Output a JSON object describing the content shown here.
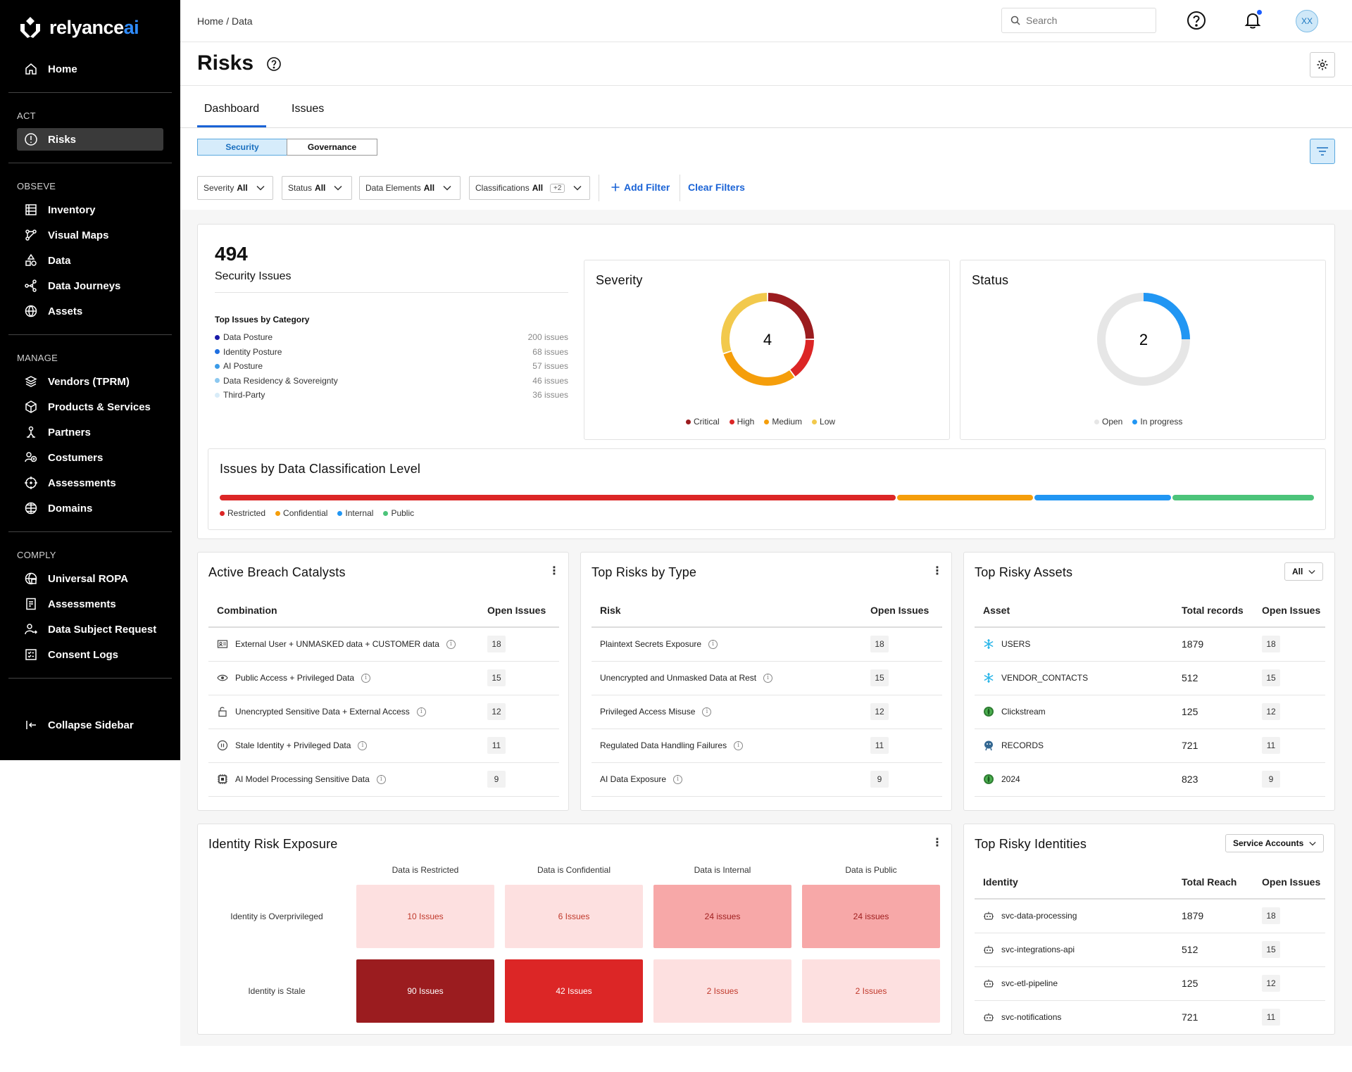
{
  "brand": {
    "name_main": "relyance",
    "name_accent": "ai"
  },
  "sidebar": {
    "home": "Home",
    "sections": [
      {
        "title": "ACT",
        "items": [
          {
            "label": "Risks",
            "icon": "alert-circle-icon",
            "active": true
          }
        ]
      },
      {
        "title": "OBSEVE",
        "items": [
          {
            "label": "Inventory",
            "icon": "inventory-icon"
          },
          {
            "label": "Visual Maps",
            "icon": "visual-maps-icon"
          },
          {
            "label": "Data",
            "icon": "data-shapes-icon"
          },
          {
            "label": "Data Journeys",
            "icon": "share-nodes-icon"
          },
          {
            "label": "Assets",
            "icon": "assets-globe-icon"
          }
        ]
      },
      {
        "title": "MANAGE",
        "items": [
          {
            "label": "Vendors (TPRM)",
            "icon": "layers-icon"
          },
          {
            "label": "Products & Services",
            "icon": "box-icon"
          },
          {
            "label": "Partners",
            "icon": "partners-icon"
          },
          {
            "label": "Costumers",
            "icon": "customers-icon"
          },
          {
            "label": "Assessments",
            "icon": "target-icon"
          },
          {
            "label": "Domains",
            "icon": "globe-icon"
          }
        ]
      },
      {
        "title": "COMPLY",
        "items": [
          {
            "label": "Universal ROPA",
            "icon": "ropa-icon"
          },
          {
            "label": "Assessments",
            "icon": "checklist-icon"
          },
          {
            "label": "Data Subject Request",
            "icon": "user-request-icon"
          },
          {
            "label": "Consent Logs",
            "icon": "consent-icon"
          }
        ]
      }
    ],
    "collapse": "Collapse Sidebar"
  },
  "header": {
    "breadcrumb": "Home / Data",
    "search_placeholder": "Search",
    "avatar": "XX"
  },
  "page": {
    "title": "Risks"
  },
  "tabs": [
    {
      "label": "Dashboard",
      "active": true
    },
    {
      "label": "Issues",
      "active": false
    }
  ],
  "segments": [
    {
      "label": "Security",
      "active": true
    },
    {
      "label": "Governance",
      "active": false
    }
  ],
  "filters": [
    {
      "label": "Severity",
      "value": "All"
    },
    {
      "label": "Status",
      "value": "All"
    },
    {
      "label": "Data Elements",
      "value": "All"
    },
    {
      "label": "Classifications",
      "value": "All",
      "extra": "+2"
    }
  ],
  "actions": {
    "add_filter": "Add Filter",
    "clear_filters": "Clear Filters"
  },
  "summary": {
    "total": "494",
    "label": "Security Issues",
    "categories_title": "Top Issues by Category",
    "categories": [
      {
        "name": "Data Posture",
        "count": "200 issues",
        "color": "#1a1aa8"
      },
      {
        "name": "Identity Posture",
        "count": "68 issues",
        "color": "#1f6fe0"
      },
      {
        "name": "AI Posture",
        "count": "57 issues",
        "color": "#3b9be8"
      },
      {
        "name": "Data Residency & Sovereignty",
        "count": "46 issues",
        "color": "#8cc8f0"
      },
      {
        "name": "Third-Party",
        "count": "36 issues",
        "color": "#d8ecf8"
      }
    ]
  },
  "severity": {
    "title": "Severity",
    "center": "4",
    "segments": [
      {
        "name": "Critical",
        "value": 1,
        "color": "#9b1c1f"
      },
      {
        "name": "High",
        "value": 0.6,
        "color": "#dc2626"
      },
      {
        "name": "Medium",
        "value": 1.2,
        "color": "#f59e0b"
      },
      {
        "name": "Low",
        "value": 1.2,
        "color": "#f2c94c"
      }
    ]
  },
  "status": {
    "title": "Status",
    "center": "2",
    "segments": [
      {
        "name": "Open",
        "value": 3,
        "color": "#e6e6e6"
      },
      {
        "name": "In progress",
        "value": 1,
        "color": "#2196f3"
      }
    ]
  },
  "classification": {
    "title": "Issues by Data Classification Level",
    "levels": [
      {
        "name": "Restricted",
        "value": 62,
        "color": "#dc2626"
      },
      {
        "name": "Confidential",
        "value": 12.5,
        "color": "#f59e0b"
      },
      {
        "name": "Internal",
        "value": 12.5,
        "color": "#2196f3"
      },
      {
        "name": "Public",
        "value": 13,
        "color": "#4cc47a"
      }
    ]
  },
  "breach": {
    "title": "Active Breach Catalysts",
    "headers": [
      "Combination",
      "Open Issues"
    ],
    "rows": [
      {
        "name": "External User + UNMASKED data + CUSTOMER data",
        "count": "18",
        "icon": "id-card-icon"
      },
      {
        "name": "Public Access + Privileged Data",
        "count": "15",
        "icon": "eye-icon"
      },
      {
        "name": "Unencrypted Sensitive Data + External Access",
        "count": "12",
        "icon": "unlock-icon"
      },
      {
        "name": "Stale Identity + Privileged Data",
        "count": "11",
        "icon": "pause-circle-icon"
      },
      {
        "name": "AI Model Processing Sensitive Data",
        "count": "9",
        "icon": "ai-chip-icon"
      }
    ]
  },
  "risk_types": {
    "title": "Top Risks by Type",
    "headers": [
      "Risk",
      "Open Issues"
    ],
    "rows": [
      {
        "name": "Plaintext Secrets Exposure",
        "count": "18"
      },
      {
        "name": "Unencrypted and Unmasked Data at Rest",
        "count": "15"
      },
      {
        "name": "Privileged Access Misuse",
        "count": "12"
      },
      {
        "name": "Regulated Data Handling Failures",
        "count": "11"
      },
      {
        "name": "AI Data Exposure",
        "count": "9"
      }
    ]
  },
  "risky_assets": {
    "title": "Top Risky Assets",
    "dropdown": "All",
    "headers": [
      "Asset",
      "Total records",
      "Open Issues"
    ],
    "rows": [
      {
        "name": "USERS",
        "records": "1879",
        "count": "18",
        "icon": "snowflake-icon"
      },
      {
        "name": "VENDOR_CONTACTS",
        "records": "512",
        "count": "15",
        "icon": "snowflake-icon"
      },
      {
        "name": "Clickstream",
        "records": "125",
        "count": "12",
        "icon": "mongodb-icon"
      },
      {
        "name": "RECORDS",
        "records": "721",
        "count": "11",
        "icon": "postgres-icon"
      },
      {
        "name": "2024",
        "records": "823",
        "count": "9",
        "icon": "mongodb-icon"
      }
    ]
  },
  "identity_exposure": {
    "title": "Identity Risk Exposure",
    "columns": [
      "Data is Restricted",
      "Data is Confidential",
      "Data is Internal",
      "Data is Public"
    ],
    "rows": [
      {
        "label": "Identity is Overprivileged",
        "cells": [
          {
            "text": "10 Issues",
            "bg": "#fde0e0",
            "fg": "#c0392b"
          },
          {
            "text": "6 Issues",
            "bg": "#fde0e0",
            "fg": "#c0392b"
          },
          {
            "text": "24 issues",
            "bg": "#f7a8a8",
            "fg": "#a02020"
          },
          {
            "text": "24 issues",
            "bg": "#f7a8a8",
            "fg": "#a02020"
          }
        ]
      },
      {
        "label": "Identity is Stale",
        "cells": [
          {
            "text": "90 Issues",
            "bg": "#9b1c1f",
            "fg": "#ffffff"
          },
          {
            "text": "42 Issues",
            "bg": "#dc2626",
            "fg": "#ffffff"
          },
          {
            "text": "2 Issues",
            "bg": "#fde0e0",
            "fg": "#c0392b"
          },
          {
            "text": "2 Issues",
            "bg": "#fde0e0",
            "fg": "#c0392b"
          }
        ]
      }
    ]
  },
  "risky_identities": {
    "title": "Top Risky Identities",
    "dropdown": "Service Accounts",
    "headers": [
      "Identity",
      "Total Reach",
      "Open Issues"
    ],
    "rows": [
      {
        "name": "svc-data-processing",
        "reach": "1879",
        "count": "18"
      },
      {
        "name": "svc-integrations-api",
        "reach": "512",
        "count": "15"
      },
      {
        "name": "svc-etl-pipeline",
        "reach": "125",
        "count": "12"
      },
      {
        "name": "svc-notifications",
        "reach": "721",
        "count": "11"
      }
    ]
  }
}
